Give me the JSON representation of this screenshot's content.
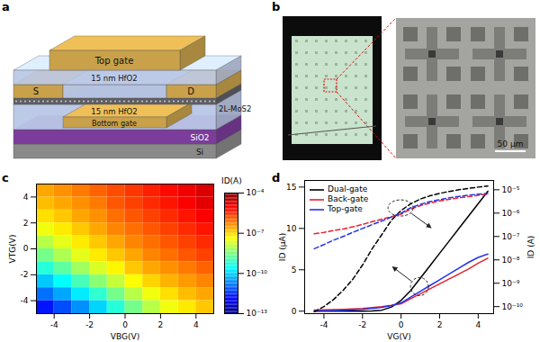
{
  "panel_labels": [
    "a",
    "b",
    "c",
    "d"
  ],
  "diagram": {
    "labels": {
      "top_gate": "Top gate",
      "source": "S",
      "drain": "D",
      "top_dielectric": "15 nm HfO2",
      "channel": "2L-MoS2",
      "bottom_dielectric": "15 nm HfO2",
      "bottom_gate": "Bottom gate",
      "oxide": "SiO2",
      "substrate": "Si"
    }
  },
  "photo": {
    "scale_bar": "50 μm"
  },
  "chart_data": [
    {
      "type": "heatmap",
      "xlabel": "VBG(V)",
      "ylabel": "VTG(V)",
      "xlim": [
        -5,
        5
      ],
      "ylim": [
        -5,
        5
      ],
      "xticks": [
        -4,
        -2,
        0,
        2,
        4
      ],
      "yticks": [
        -4,
        -2,
        0,
        2,
        4
      ],
      "x": [
        -4.5,
        -3.5,
        -2.5,
        -1.5,
        -0.5,
        0.5,
        1.5,
        2.5,
        3.5,
        4.5
      ],
      "y": [
        4.5,
        3.5,
        2.5,
        1.5,
        0.5,
        -0.5,
        -1.5,
        -2.5,
        -3.5,
        -4.5
      ],
      "values": [
        [
          2.5e-07,
          4e-07,
          6.3e-07,
          1e-06,
          1.6e-06,
          2.5e-06,
          4e-06,
          6.3e-06,
          1e-05,
          1.6e-05
        ],
        [
          1.6e-07,
          2.5e-07,
          4e-07,
          6.3e-07,
          1.3e-06,
          2e-06,
          3.2e-06,
          5e-06,
          7.9e-06,
          1.3e-05
        ],
        [
          7.9e-08,
          1.3e-07,
          2.5e-07,
          4e-07,
          7.9e-07,
          1.3e-06,
          2e-06,
          3.2e-06,
          5e-06,
          7.9e-06
        ],
        [
          3.2e-08,
          6.3e-08,
          1.3e-07,
          2.5e-07,
          5e-07,
          7.9e-07,
          1.3e-06,
          2e-06,
          3.2e-06,
          5e-06
        ],
        [
          1e-08,
          2.5e-08,
          6.3e-08,
          1.3e-07,
          2.5e-07,
          5e-07,
          7.9e-07,
          1.3e-06,
          2e-06,
          3.2e-06
        ],
        [
          2.5e-09,
          7.9e-09,
          2.5e-08,
          6.3e-08,
          1.3e-07,
          2.5e-07,
          5e-07,
          7.9e-07,
          1.3e-06,
          2e-06
        ],
        [
          5e-10,
          1.6e-09,
          6.3e-09,
          2e-08,
          5e-08,
          1.3e-07,
          2.5e-07,
          4e-07,
          6.3e-07,
          1e-06
        ],
        [
          7.9e-11,
          2.5e-10,
          1e-09,
          4e-09,
          1.3e-08,
          4e-08,
          1e-07,
          2e-07,
          3.2e-07,
          5e-07
        ],
        [
          1.3e-11,
          4e-11,
          1.6e-10,
          6.3e-10,
          2.5e-09,
          1e-08,
          3.2e-08,
          7.9e-08,
          1.6e-07,
          2.5e-07
        ],
        [
          2e-12,
          6.3e-12,
          2.5e-11,
          1e-10,
          5e-10,
          2.5e-09,
          1e-08,
          3.2e-08,
          6.3e-08,
          1.3e-07
        ]
      ],
      "colorbar": {
        "label": "ID(A)",
        "log": true,
        "range": [
          1e-13,
          0.0001
        ],
        "ticks": [
          {
            "value": 0.0001,
            "label": "10⁻⁴"
          },
          {
            "value": 1e-07,
            "label": "10⁻⁷"
          },
          {
            "value": 1e-10,
            "label": "10⁻¹⁰"
          },
          {
            "value": 1e-13,
            "label": "10⁻¹³"
          }
        ]
      }
    },
    {
      "type": "line",
      "xlabel": "VG(V)",
      "ylabel": "ID (µA)",
      "y2label": "ID (A)",
      "xlim": [
        -5,
        4.8
      ],
      "ylim": [
        -0.3,
        15.8
      ],
      "y2lim": [
        5e-11,
        2.5e-05
      ],
      "log": "y2",
      "xticks": [
        -4,
        -2,
        0,
        2,
        4
      ],
      "yticks": [
        0,
        5,
        10,
        15
      ],
      "y2ticks": [
        {
          "value": 1e-10,
          "label": "10⁻¹⁰"
        },
        {
          "value": 1e-09,
          "label": "10⁻⁹"
        },
        {
          "value": 1e-08,
          "label": "10⁻⁸"
        },
        {
          "value": 1e-07,
          "label": "10⁻⁷"
        },
        {
          "value": 1e-06,
          "label": "10⁻⁶"
        },
        {
          "value": 1e-05,
          "label": "10⁻⁵"
        }
      ],
      "legend": "top-left",
      "x": [
        -4.5,
        -4,
        -3.5,
        -3,
        -2.5,
        -2,
        -1.5,
        -1,
        -0.5,
        0,
        0.5,
        1,
        1.5,
        2,
        2.5,
        3,
        3.5,
        4,
        4.5
      ],
      "series": [
        {
          "name": "Dual-gate",
          "color": "#000000",
          "line_style": "solid",
          "values": [
            0,
            0,
            0,
            0,
            0,
            0,
            0.03,
            0.12,
            0.5,
            1.3,
            2.5,
            4.0,
            5.5,
            7.0,
            8.5,
            10.0,
            11.5,
            13.0,
            14.5
          ]
        },
        {
          "name": "Back-gate",
          "color": "#e8202a",
          "line_style": "solid",
          "values": [
            0.13,
            0.15,
            0.18,
            0.21,
            0.26,
            0.33,
            0.43,
            0.55,
            0.7,
            0.9,
            1.5,
            2.1,
            2.7,
            3.3,
            3.9,
            4.5,
            5.1,
            5.8,
            6.4
          ]
        },
        {
          "name": "Top-gate",
          "color": "#2233ee",
          "line_style": "solid",
          "values": [
            0.03,
            0.045,
            0.07,
            0.1,
            0.15,
            0.22,
            0.32,
            0.46,
            0.68,
            1.0,
            1.7,
            2.4,
            3.1,
            3.8,
            4.5,
            5.2,
            5.9,
            6.5,
            6.9
          ]
        },
        {
          "name": "Dual-gate",
          "color": "#000000",
          "line_style": "dashed",
          "axis": "y2",
          "values": [
            6e-11,
            1e-10,
            2e-10,
            5e-10,
            1.5e-09,
            6e-09,
            3e-08,
            1.2e-07,
            5e-07,
            1.3e-06,
            2.5e-06,
            4e-06,
            5.5e-06,
            7e-06,
            8.5e-06,
            1e-05,
            1.15e-05,
            1.3e-05,
            1.45e-05
          ]
        },
        {
          "name": "Back-gate",
          "color": "#e8202a",
          "line_style": "dashed",
          "axis": "y2",
          "values": [
            1.3e-07,
            1.5e-07,
            1.8e-07,
            2.1e-07,
            2.6e-07,
            3.3e-07,
            4.3e-07,
            5.5e-07,
            7e-07,
            9e-07,
            1.5e-06,
            2.1e-06,
            2.7e-06,
            3.3e-06,
            3.9e-06,
            4.5e-06,
            5.1e-06,
            5.8e-06,
            6.4e-06
          ]
        },
        {
          "name": "Top-gate",
          "color": "#2233ee",
          "line_style": "dashed",
          "axis": "y2",
          "values": [
            3e-08,
            4.5e-08,
            7e-08,
            1e-07,
            1.5e-07,
            2.2e-07,
            3.2e-07,
            4.6e-07,
            6.8e-07,
            1e-06,
            1.7e-06,
            2.4e-06,
            3.1e-06,
            3.8e-06,
            4.5e-06,
            5.2e-06,
            5.9e-06,
            6.5e-06,
            6.9e-06
          ]
        }
      ]
    }
  ]
}
